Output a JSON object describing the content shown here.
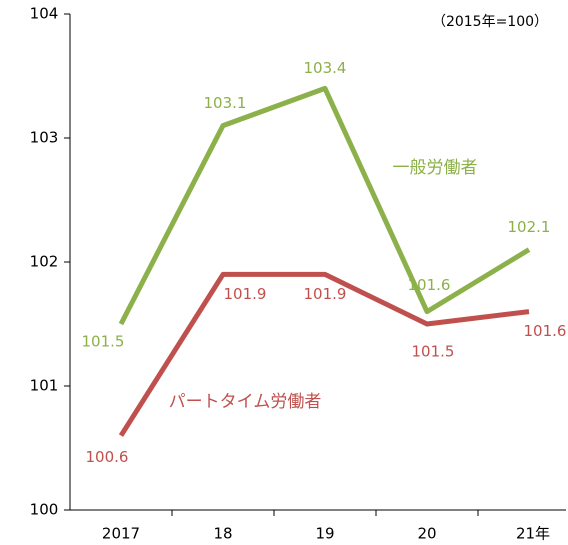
{
  "chart_data": {
    "type": "line",
    "annotation": "（2015年=100）",
    "categories": [
      "2017",
      "18",
      "19",
      "20",
      "21年"
    ],
    "series": [
      {
        "name": "一般労働者",
        "color": "#8cb04a",
        "values": [
          101.5,
          103.1,
          103.4,
          101.6,
          102.1
        ]
      },
      {
        "name": "パートタイム労働者",
        "color": "#c0504d",
        "values": [
          100.6,
          101.9,
          101.9,
          101.5,
          101.6
        ]
      }
    ],
    "ylim": [
      100,
      104
    ],
    "yticks": [
      100,
      101,
      102,
      103,
      104
    ],
    "grid": false
  }
}
